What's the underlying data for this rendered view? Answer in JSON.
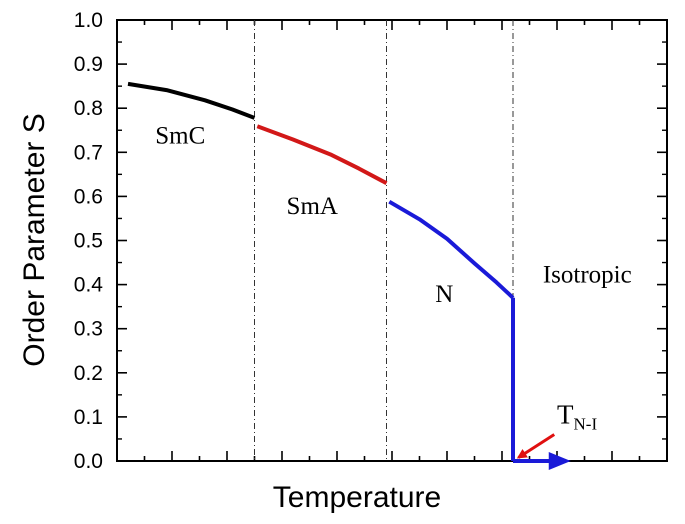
{
  "chart_data": {
    "type": "line",
    "title": "",
    "xlabel": "Temperature",
    "ylabel": "Order Parameter  S",
    "x_tick_labels": [],
    "xlim": [
      0,
      10
    ],
    "ylim": [
      0.0,
      1.0
    ],
    "yticks": [
      "0.0",
      "0.1",
      "0.2",
      "0.3",
      "0.4",
      "0.5",
      "0.6",
      "0.7",
      "0.8",
      "0.9",
      "1.0"
    ],
    "grid": false,
    "legend": "none",
    "phase_boundaries": [
      2.5,
      4.9,
      7.2
    ],
    "regions": [
      {
        "label": "SmC",
        "x": 1.15,
        "y": 0.72
      },
      {
        "label": "SmA",
        "x": 3.55,
        "y": 0.56
      },
      {
        "label": "N",
        "x": 5.95,
        "y": 0.36
      },
      {
        "label": "Isotropic",
        "x": 8.55,
        "y": 0.405
      }
    ],
    "series": [
      {
        "color": "#000000",
        "x": [
          0.2,
          0.9,
          1.6,
          2.1,
          2.5
        ],
        "y": [
          0.855,
          0.841,
          0.818,
          0.797,
          0.778
        ]
      },
      {
        "color": "#d21818",
        "x": [
          2.55,
          3.2,
          3.9,
          4.4,
          4.9
        ],
        "y": [
          0.759,
          0.729,
          0.694,
          0.663,
          0.63
        ]
      },
      {
        "color": "#1a1ad8",
        "x": [
          4.95,
          5.5,
          6.0,
          6.5,
          6.9,
          7.2
        ],
        "y": [
          0.588,
          0.548,
          0.504,
          0.448,
          0.405,
          0.37
        ]
      },
      {
        "color": "#1a1ad8",
        "x": [
          7.2,
          7.2
        ],
        "y": [
          0.37,
          0.0
        ]
      },
      {
        "color": "#1a1ad8",
        "x": [
          7.2,
          8.05
        ],
        "y": [
          0.0,
          0.0
        ]
      }
    ],
    "annotations": [
      {
        "text": "T",
        "subscript": "N-I",
        "color": "#e01010",
        "label_x": 8.0,
        "label_y": 0.085,
        "arrow_from": [
          7.95,
          0.06
        ],
        "arrow_to": [
          7.3,
          0.008
        ]
      }
    ],
    "x_arrow": {
      "color": "#1a1ad8",
      "from": [
        7.2,
        0.0
      ],
      "to": [
        8.25,
        0.0
      ]
    }
  }
}
